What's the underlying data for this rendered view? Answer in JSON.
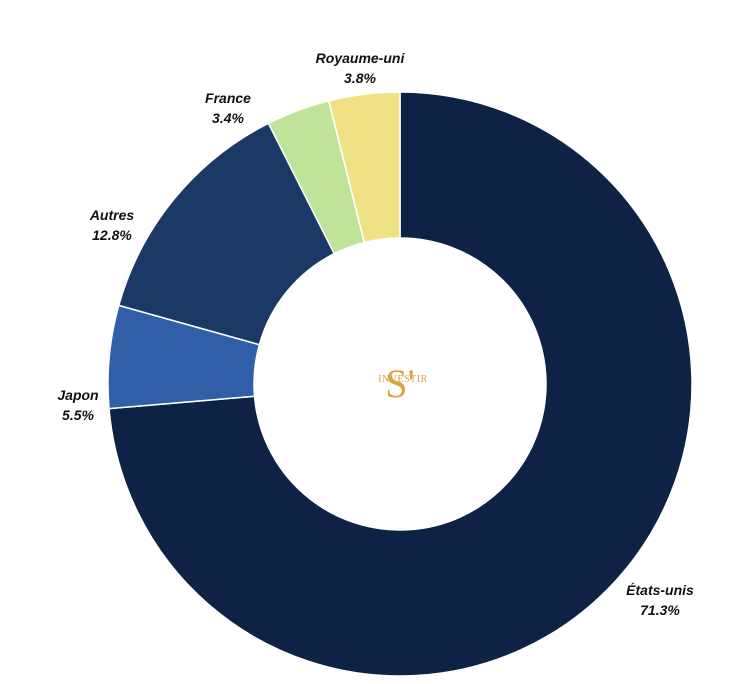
{
  "chart_data": {
    "type": "pie",
    "title": "",
    "categories": [
      "États-unis",
      "Japon",
      "Autres",
      "France",
      "Royaume-uni"
    ],
    "values": [
      71.3,
      5.5,
      12.8,
      3.4,
      3.8
    ],
    "value_labels": [
      "71.3%",
      "5.5%",
      "12.8%",
      "3.4%",
      "3.8%"
    ],
    "colors": [
      "#0d2244",
      "#2f5fa6",
      "#1a3966",
      "#c0e39a",
      "#efe184",
      "#f6cf83"
    ],
    "donut": true,
    "legend": "none"
  },
  "logo": {
    "mark": "S'",
    "text": "INVESTIR",
    "color": "#d9a441"
  }
}
